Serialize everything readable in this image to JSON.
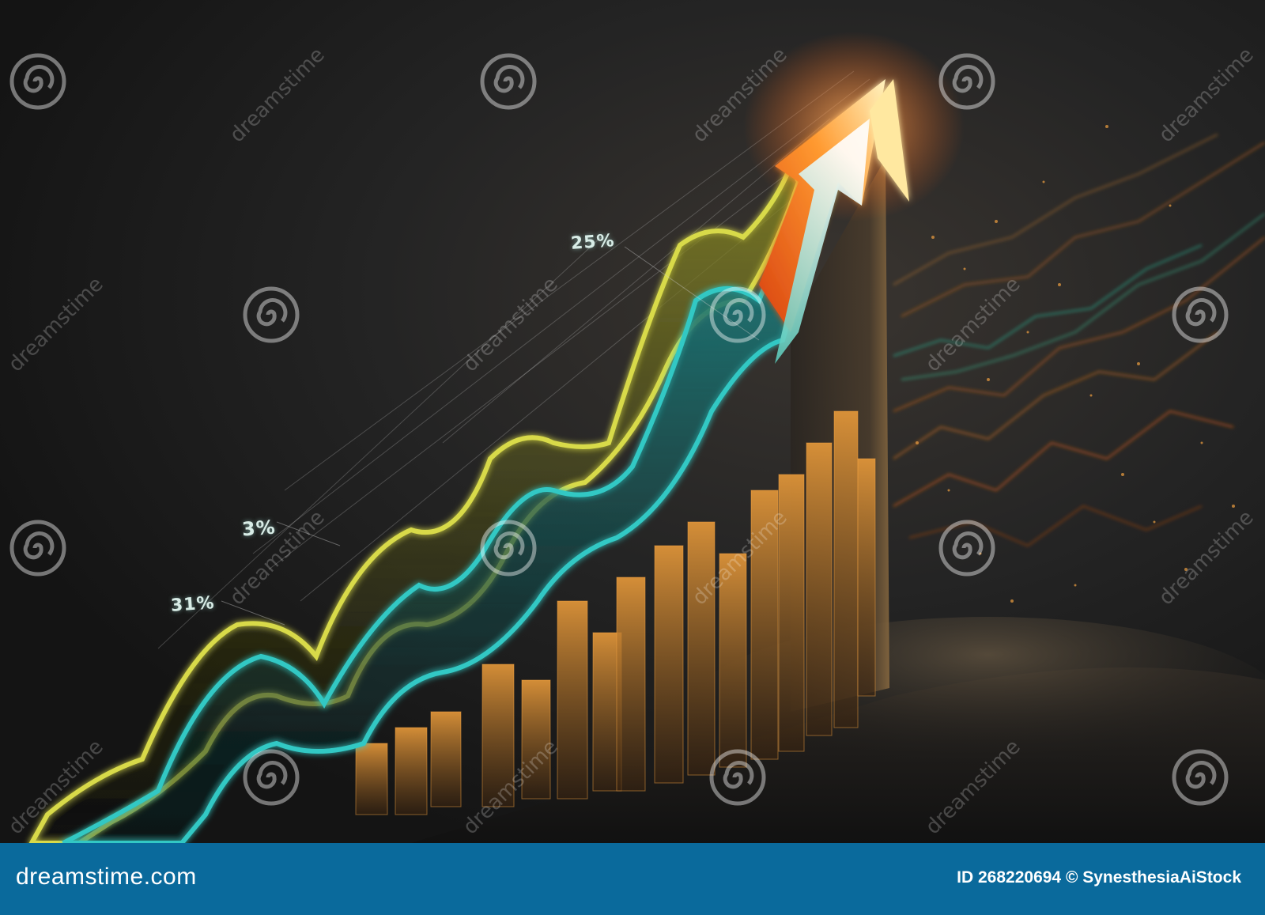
{
  "image": {
    "labels": {
      "p25": "25%",
      "p3": "3%",
      "p31": "31%"
    },
    "watermark": {
      "text": "dreamstime",
      "icon": "spiral-icon"
    }
  },
  "footer": {
    "brand": "dreamstime.com",
    "id_line": "ID 268220694 © SynesthesiaAiStock"
  },
  "colors": {
    "background": "#1c1c1c",
    "footer": "#0a6a9c",
    "yellow_line": "#d4d84a",
    "teal_line": "#2cc7c4",
    "orange_bars": "#c87a20",
    "arrow_glow": "#ff7a20"
  }
}
